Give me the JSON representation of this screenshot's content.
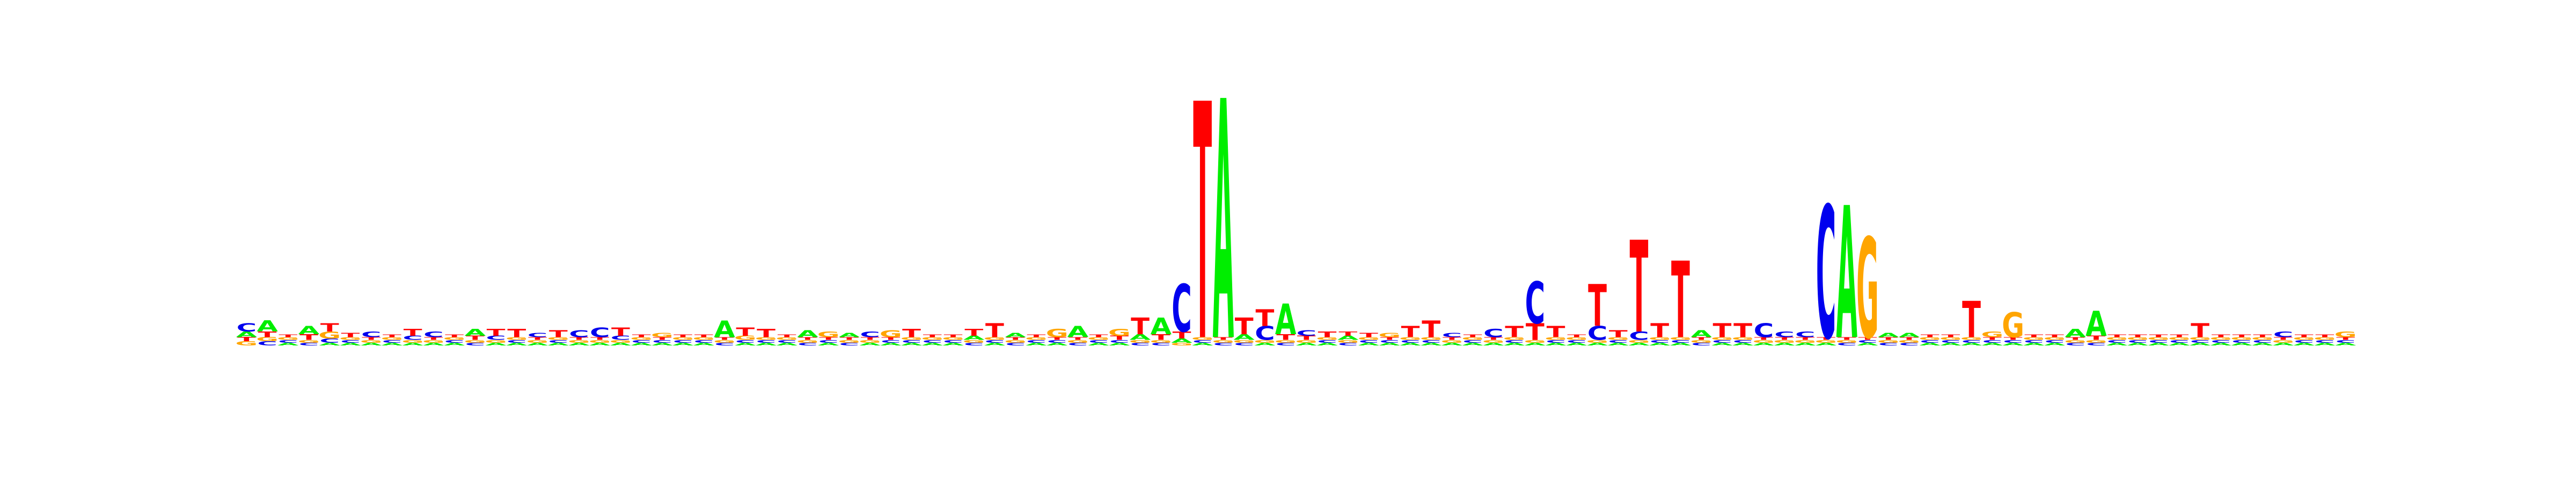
{
  "chart_data": {
    "type": "sequence-logo",
    "alphabet": [
      "A",
      "C",
      "G",
      "T"
    ],
    "colors": {
      "A": "#00ee00",
      "C": "#0000ee",
      "G": "#ffa500",
      "T": "#ff0000"
    },
    "ylim": [
      0,
      2
    ],
    "positions": [
      {
        "A": 0.04,
        "C": 0.06,
        "G": 0.03,
        "T": 0.03
      },
      {
        "A": 0.08,
        "C": 0.03,
        "G": 0.03,
        "T": 0.04
      },
      {
        "A": 0.02,
        "C": 0.02,
        "G": 0.02,
        "T": 0.02
      },
      {
        "A": 0.06,
        "C": 0.02,
        "G": 0.02,
        "T": 0.04
      },
      {
        "A": 0.02,
        "C": 0.03,
        "G": 0.05,
        "T": 0.06
      },
      {
        "A": 0.02,
        "C": 0.02,
        "G": 0.02,
        "T": 0.03
      },
      {
        "A": 0.02,
        "C": 0.04,
        "G": 0.02,
        "T": 0.02
      },
      {
        "A": 0.02,
        "C": 0.02,
        "G": 0.02,
        "T": 0.02
      },
      {
        "A": 0.02,
        "C": 0.03,
        "G": 0.02,
        "T": 0.05
      },
      {
        "A": 0.02,
        "C": 0.04,
        "G": 0.02,
        "T": 0.02
      },
      {
        "A": 0.02,
        "C": 0.02,
        "G": 0.02,
        "T": 0.02
      },
      {
        "A": 0.05,
        "C": 0.02,
        "G": 0.02,
        "T": 0.03
      },
      {
        "A": 0.02,
        "C": 0.03,
        "G": 0.02,
        "T": 0.05
      },
      {
        "A": 0.02,
        "C": 0.02,
        "G": 0.02,
        "T": 0.06
      },
      {
        "A": 0.02,
        "C": 0.03,
        "G": 0.02,
        "T": 0.02
      },
      {
        "A": 0.02,
        "C": 0.02,
        "G": 0.02,
        "T": 0.05
      },
      {
        "A": 0.02,
        "C": 0.05,
        "G": 0.02,
        "T": 0.02
      },
      {
        "A": 0.02,
        "C": 0.07,
        "G": 0.02,
        "T": 0.02
      },
      {
        "A": 0.02,
        "C": 0.03,
        "G": 0.02,
        "T": 0.06
      },
      {
        "A": 0.02,
        "C": 0.02,
        "G": 0.02,
        "T": 0.02
      },
      {
        "A": 0.02,
        "C": 0.02,
        "G": 0.03,
        "T": 0.02
      },
      {
        "A": 0.02,
        "C": 0.02,
        "G": 0.02,
        "T": 0.02
      },
      {
        "A": 0.02,
        "C": 0.02,
        "G": 0.02,
        "T": 0.02
      },
      {
        "A": 0.12,
        "C": 0.02,
        "G": 0.02,
        "T": 0.02
      },
      {
        "A": 0.02,
        "C": 0.02,
        "G": 0.03,
        "T": 0.06
      },
      {
        "A": 0.02,
        "C": 0.02,
        "G": 0.02,
        "T": 0.06
      },
      {
        "A": 0.02,
        "C": 0.02,
        "G": 0.02,
        "T": 0.02
      },
      {
        "A": 0.05,
        "C": 0.02,
        "G": 0.02,
        "T": 0.02
      },
      {
        "A": 0.02,
        "C": 0.02,
        "G": 0.04,
        "T": 0.02
      },
      {
        "A": 0.03,
        "C": 0.02,
        "G": 0.02,
        "T": 0.02
      },
      {
        "A": 0.02,
        "C": 0.04,
        "G": 0.02,
        "T": 0.02
      },
      {
        "A": 0.02,
        "C": 0.02,
        "G": 0.05,
        "T": 0.02
      },
      {
        "A": 0.02,
        "C": 0.02,
        "G": 0.02,
        "T": 0.06
      },
      {
        "A": 0.02,
        "C": 0.02,
        "G": 0.02,
        "T": 0.02
      },
      {
        "A": 0.02,
        "C": 0.02,
        "G": 0.02,
        "T": 0.02
      },
      {
        "A": 0.03,
        "C": 0.02,
        "G": 0.02,
        "T": 0.05
      },
      {
        "A": 0.02,
        "C": 0.02,
        "G": 0.02,
        "T": 0.1
      },
      {
        "A": 0.03,
        "C": 0.02,
        "G": 0.02,
        "T": 0.02
      },
      {
        "A": 0.02,
        "C": 0.02,
        "G": 0.02,
        "T": 0.02
      },
      {
        "A": 0.02,
        "C": 0.02,
        "G": 0.06,
        "T": 0.02
      },
      {
        "A": 0.08,
        "C": 0.02,
        "G": 0.02,
        "T": 0.02
      },
      {
        "A": 0.02,
        "C": 0.02,
        "G": 0.02,
        "T": 0.02
      },
      {
        "A": 0.02,
        "C": 0.02,
        "G": 0.05,
        "T": 0.03
      },
      {
        "A": 0.04,
        "C": 0.02,
        "G": 0.02,
        "T": 0.12
      },
      {
        "A": 0.12,
        "C": 0.02,
        "G": 0.02,
        "T": 0.04
      },
      {
        "A": 0.03,
        "C": 0.34,
        "G": 0.02,
        "T": 0.05
      },
      {
        "A": 0.02,
        "C": 0.02,
        "G": 0.02,
        "T": 1.7
      },
      {
        "A": 1.72,
        "C": 0.02,
        "G": 0.02,
        "T": 0.02
      },
      {
        "A": 0.04,
        "C": 0.02,
        "G": 0.02,
        "T": 0.12
      },
      {
        "A": 0.02,
        "C": 0.1,
        "G": 0.02,
        "T": 0.12
      },
      {
        "A": 0.22,
        "C": 0.02,
        "G": 0.02,
        "T": 0.04
      },
      {
        "A": 0.02,
        "C": 0.04,
        "G": 0.02,
        "T": 0.03
      },
      {
        "A": 0.02,
        "C": 0.02,
        "G": 0.02,
        "T": 0.04
      },
      {
        "A": 0.03,
        "C": 0.02,
        "G": 0.02,
        "T": 0.03
      },
      {
        "A": 0.02,
        "C": 0.02,
        "G": 0.02,
        "T": 0.03
      },
      {
        "A": 0.02,
        "C": 0.02,
        "G": 0.03,
        "T": 0.02
      },
      {
        "A": 0.02,
        "C": 0.02,
        "G": 0.02,
        "T": 0.08
      },
      {
        "A": 0.02,
        "C": 0.02,
        "G": 0.02,
        "T": 0.12
      },
      {
        "A": 0.02,
        "C": 0.03,
        "G": 0.02,
        "T": 0.02
      },
      {
        "A": 0.02,
        "C": 0.02,
        "G": 0.02,
        "T": 0.02
      },
      {
        "A": 0.02,
        "C": 0.06,
        "G": 0.02,
        "T": 0.02
      },
      {
        "A": 0.02,
        "C": 0.02,
        "G": 0.02,
        "T": 0.08
      },
      {
        "A": 0.02,
        "C": 0.3,
        "G": 0.02,
        "T": 0.12
      },
      {
        "A": 0.02,
        "C": 0.02,
        "G": 0.02,
        "T": 0.08
      },
      {
        "A": 0.02,
        "C": 0.02,
        "G": 0.02,
        "T": 0.02
      },
      {
        "A": 0.02,
        "C": 0.1,
        "G": 0.02,
        "T": 0.3
      },
      {
        "A": 0.02,
        "C": 0.02,
        "G": 0.02,
        "T": 0.05
      },
      {
        "A": 0.02,
        "C": 0.06,
        "G": 0.02,
        "T": 0.66
      },
      {
        "A": 0.02,
        "C": 0.02,
        "G": 0.02,
        "T": 0.1
      },
      {
        "A": 0.02,
        "C": 0.02,
        "G": 0.02,
        "T": 0.55
      },
      {
        "A": 0.05,
        "C": 0.02,
        "G": 0.02,
        "T": 0.02
      },
      {
        "A": 0.02,
        "C": 0.02,
        "G": 0.02,
        "T": 0.1
      },
      {
        "A": 0.02,
        "C": 0.02,
        "G": 0.02,
        "T": 0.1
      },
      {
        "A": 0.02,
        "C": 0.1,
        "G": 0.02,
        "T": 0.02
      },
      {
        "A": 0.02,
        "C": 0.04,
        "G": 0.02,
        "T": 0.02
      },
      {
        "A": 0.02,
        "C": 0.04,
        "G": 0.02,
        "T": 0.02
      },
      {
        "A": 0.02,
        "C": 0.95,
        "G": 0.02,
        "T": 0.02
      },
      {
        "A": 0.95,
        "C": 0.02,
        "G": 0.02,
        "T": 0.02
      },
      {
        "A": 0.02,
        "C": 0.02,
        "G": 0.72,
        "T": 0.02
      },
      {
        "A": 0.03,
        "C": 0.02,
        "G": 0.02,
        "T": 0.02
      },
      {
        "A": 0.03,
        "C": 0.02,
        "G": 0.02,
        "T": 0.02
      },
      {
        "A": 0.02,
        "C": 0.02,
        "G": 0.02,
        "T": 0.02
      },
      {
        "A": 0.02,
        "C": 0.02,
        "G": 0.02,
        "T": 0.02
      },
      {
        "A": 0.02,
        "C": 0.02,
        "G": 0.02,
        "T": 0.26
      },
      {
        "A": 0.02,
        "C": 0.02,
        "G": 0.04,
        "T": 0.02
      },
      {
        "A": 0.02,
        "C": 0.02,
        "G": 0.18,
        "T": 0.02
      },
      {
        "A": 0.02,
        "C": 0.02,
        "G": 0.02,
        "T": 0.02
      },
      {
        "A": 0.02,
        "C": 0.02,
        "G": 0.02,
        "T": 0.02
      },
      {
        "A": 0.06,
        "C": 0.02,
        "G": 0.02,
        "T": 0.02
      },
      {
        "A": 0.18,
        "C": 0.02,
        "G": 0.02,
        "T": 0.03
      },
      {
        "A": 0.02,
        "C": 0.02,
        "G": 0.02,
        "T": 0.02
      },
      {
        "A": 0.02,
        "C": 0.02,
        "G": 0.02,
        "T": 0.02
      },
      {
        "A": 0.02,
        "C": 0.02,
        "G": 0.02,
        "T": 0.02
      },
      {
        "A": 0.02,
        "C": 0.02,
        "G": 0.02,
        "T": 0.02
      },
      {
        "A": 0.02,
        "C": 0.02,
        "G": 0.02,
        "T": 0.1
      },
      {
        "A": 0.02,
        "C": 0.02,
        "G": 0.02,
        "T": 0.02
      },
      {
        "A": 0.02,
        "C": 0.02,
        "G": 0.02,
        "T": 0.02
      },
      {
        "A": 0.02,
        "C": 0.02,
        "G": 0.02,
        "T": 0.02
      },
      {
        "A": 0.02,
        "C": 0.04,
        "G": 0.02,
        "T": 0.02
      },
      {
        "A": 0.02,
        "C": 0.02,
        "G": 0.02,
        "T": 0.02
      },
      {
        "A": 0.02,
        "C": 0.02,
        "G": 0.02,
        "T": 0.02
      },
      {
        "A": 0.02,
        "C": 0.02,
        "G": 0.04,
        "T": 0.02
      }
    ]
  }
}
